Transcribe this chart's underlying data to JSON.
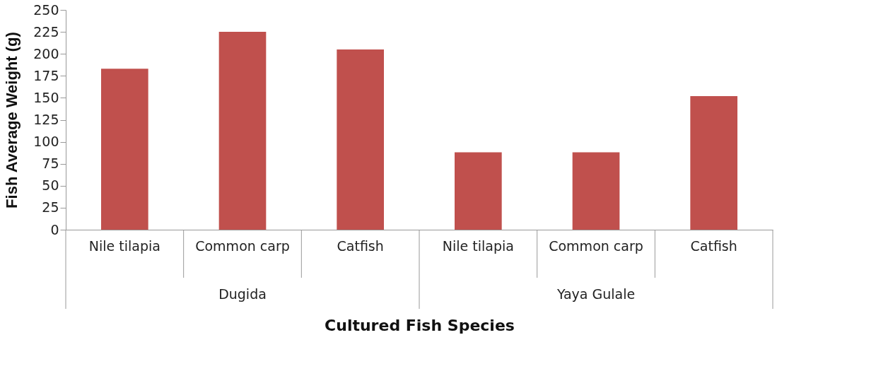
{
  "chart_data": {
    "type": "bar",
    "categories": [
      "Nile tilapia",
      "Common carp",
      "Catfish",
      "Nile tilapia",
      "Common carp",
      "Catfish"
    ],
    "values": [
      183,
      225,
      205,
      88,
      88,
      152
    ],
    "color": "#c0504d",
    "xlabel": "Cultured Fish Species",
    "ylabel": "Fish Average Weight (g)",
    "ylim": [
      0,
      250
    ],
    "yticks": [
      0,
      25,
      50,
      75,
      100,
      125,
      150,
      175,
      200,
      225,
      250
    ],
    "grid": false,
    "annotations": [
      "Dugida",
      "Yaya Gulale"
    ]
  }
}
